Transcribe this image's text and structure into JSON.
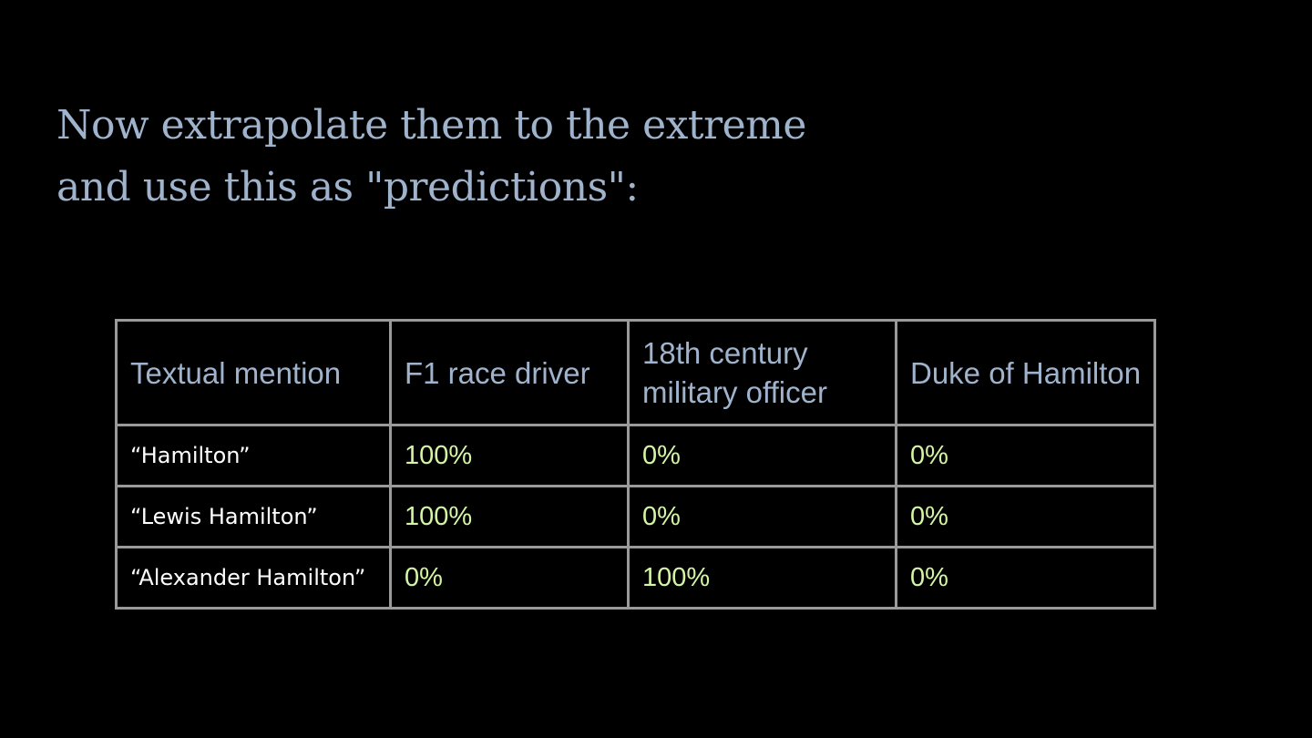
{
  "slide": {
    "title_lines": [
      "Now extrapolate them to the extreme",
      "and use this as \"predictions\":"
    ]
  },
  "table": {
    "headers": [
      "Textual mention",
      "F1 race driver",
      "18th century military officer",
      "Duke of Hamilton"
    ],
    "rows": [
      {
        "mention": "“Hamilton”",
        "values": [
          "100%",
          "0%",
          "0%"
        ]
      },
      {
        "mention": "“Lewis Hamilton”",
        "values": [
          "100%",
          "0%",
          "0%"
        ]
      },
      {
        "mention": "“Alexander Hamilton”",
        "values": [
          "0%",
          "100%",
          "0%"
        ]
      }
    ]
  },
  "colors": {
    "background": "#000000",
    "title_text": "#9fb3cc",
    "header_text": "#9fb3cc",
    "row_label_text": "#ffffff",
    "value_text": "#d4f5a3",
    "table_border": "#9a9a9a"
  }
}
